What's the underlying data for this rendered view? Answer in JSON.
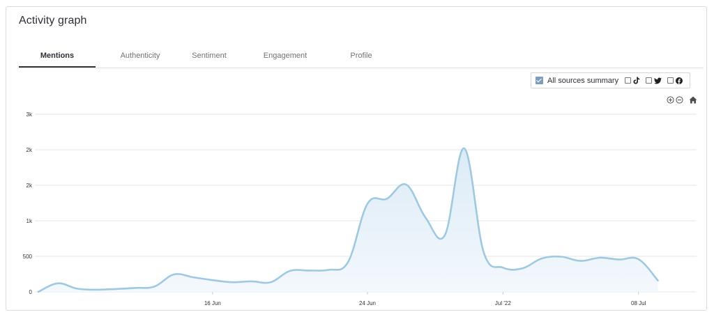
{
  "widget": {
    "title": "Activity graph",
    "tabs": [
      {
        "label": "Mentions",
        "active": true
      },
      {
        "label": "Authenticity",
        "active": false
      },
      {
        "label": "Sentiment",
        "active": false
      },
      {
        "label": "Engagement",
        "active": false
      },
      {
        "label": "Profile",
        "active": false
      }
    ]
  },
  "legend": {
    "summary_label": "All sources summary",
    "summary_checked": true,
    "sources": [
      {
        "icon": "tiktok-icon",
        "checked": false
      },
      {
        "icon": "twitter-icon",
        "checked": false
      },
      {
        "icon": "facebook-icon",
        "checked": false
      }
    ]
  },
  "toolbar": {
    "zoom_in_icon": "zoom-in-icon",
    "zoom_out_icon": "zoom-out-icon",
    "reset_icon": "home-icon"
  },
  "colors": {
    "line": "#9ec9e2",
    "fill_top": "#dcebf6",
    "fill_bottom": "#f3f8fc",
    "grid": "#e6e6e6",
    "accent": "#7d9dc0"
  },
  "chart_data": {
    "type": "area",
    "title": "",
    "xlabel": "",
    "ylabel": "",
    "x_ticks": [
      {
        "date": "2022-06-16",
        "label": "16 Jun"
      },
      {
        "date": "2022-06-24",
        "label": "24 Jun"
      },
      {
        "date": "2022-07-01",
        "label": "Jul '22"
      },
      {
        "date": "2022-07-08",
        "label": "08 Jul"
      }
    ],
    "y_ticks": [
      {
        "value": 0,
        "label": "0"
      },
      {
        "value": 500,
        "label": "500"
      },
      {
        "value": 1000,
        "label": "1k"
      },
      {
        "value": 1500,
        "label": "2k"
      },
      {
        "value": 2000,
        "label": "2k"
      },
      {
        "value": 2500,
        "label": "3k"
      }
    ],
    "ylim": [
      0,
      2500
    ],
    "xlim": [
      "2022-06-07",
      "2022-07-11"
    ],
    "grid": true,
    "series": [
      {
        "values": [
          {
            "x": "2022-06-07",
            "y": 0
          },
          {
            "x": "2022-06-08",
            "y": 120
          },
          {
            "x": "2022-06-09",
            "y": 45
          },
          {
            "x": "2022-06-10",
            "y": 30
          },
          {
            "x": "2022-06-11",
            "y": 40
          },
          {
            "x": "2022-06-12",
            "y": 55
          },
          {
            "x": "2022-06-13",
            "y": 75
          },
          {
            "x": "2022-06-14",
            "y": 245
          },
          {
            "x": "2022-06-15",
            "y": 205
          },
          {
            "x": "2022-06-16",
            "y": 165
          },
          {
            "x": "2022-06-17",
            "y": 135
          },
          {
            "x": "2022-06-18",
            "y": 148
          },
          {
            "x": "2022-06-19",
            "y": 135
          },
          {
            "x": "2022-06-20",
            "y": 295
          },
          {
            "x": "2022-06-21",
            "y": 300
          },
          {
            "x": "2022-06-22",
            "y": 310
          },
          {
            "x": "2022-06-23",
            "y": 420
          },
          {
            "x": "2022-06-24",
            "y": 1240
          },
          {
            "x": "2022-06-25",
            "y": 1310
          },
          {
            "x": "2022-06-26",
            "y": 1510
          },
          {
            "x": "2022-06-27",
            "y": 1045
          },
          {
            "x": "2022-06-28",
            "y": 800
          },
          {
            "x": "2022-06-29",
            "y": 2020
          },
          {
            "x": "2022-06-30",
            "y": 560
          },
          {
            "x": "2022-07-01",
            "y": 340
          },
          {
            "x": "2022-07-02",
            "y": 330
          },
          {
            "x": "2022-07-03",
            "y": 470
          },
          {
            "x": "2022-07-04",
            "y": 495
          },
          {
            "x": "2022-07-05",
            "y": 435
          },
          {
            "x": "2022-07-06",
            "y": 480
          },
          {
            "x": "2022-07-07",
            "y": 455
          },
          {
            "x": "2022-07-08",
            "y": 460
          },
          {
            "x": "2022-07-09",
            "y": 160
          }
        ]
      }
    ]
  }
}
